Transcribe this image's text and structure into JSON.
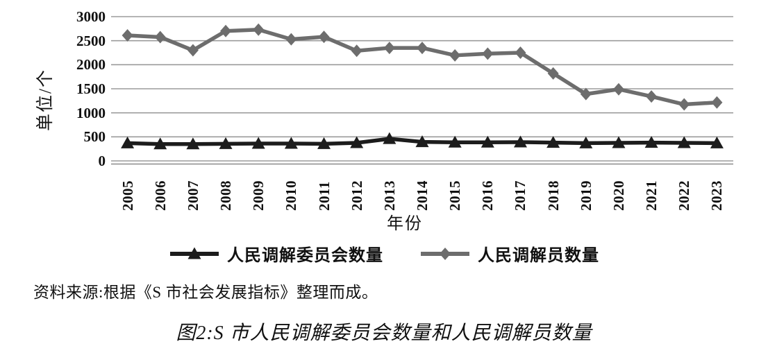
{
  "figure": {
    "source_note": "资料来源:根据《S 市社会发展指标》整理而成。",
    "caption": "图2:S 市人民调解委员会数量和人民调解员数量"
  },
  "chart_data": {
    "type": "line",
    "title": "",
    "x": [
      "2005",
      "2006",
      "2007",
      "2008",
      "2009",
      "2010",
      "2011",
      "2012",
      "2013",
      "2014",
      "2015",
      "2016",
      "2017",
      "2018",
      "2019",
      "2020",
      "2021",
      "2022",
      "2023"
    ],
    "series": [
      {
        "name": "人民调解委员会数量",
        "marker": "triangle",
        "color": "#1c1c1c",
        "values": [
          370,
          350,
          350,
          355,
          360,
          360,
          355,
          375,
          460,
          395,
          385,
          385,
          390,
          380,
          370,
          375,
          380,
          375,
          370
        ]
      },
      {
        "name": "人民调解员数量",
        "marker": "diamond",
        "color": "#6d6d6d",
        "values": [
          2610,
          2575,
          2300,
          2700,
          2730,
          2530,
          2580,
          2290,
          2350,
          2350,
          2195,
          2230,
          2250,
          1820,
          1390,
          1490,
          1340,
          1175,
          1215
        ]
      }
    ],
    "xlabel": "年份",
    "ylabel": "单位/个",
    "ylim": [
      0,
      3000
    ],
    "yticks": [
      0,
      500,
      1000,
      1500,
      2000,
      2500,
      3000
    ],
    "grid": true,
    "legend_position": "bottom",
    "gridline_color": "#9b9b9b",
    "axis_color": "#8a8a8a"
  }
}
